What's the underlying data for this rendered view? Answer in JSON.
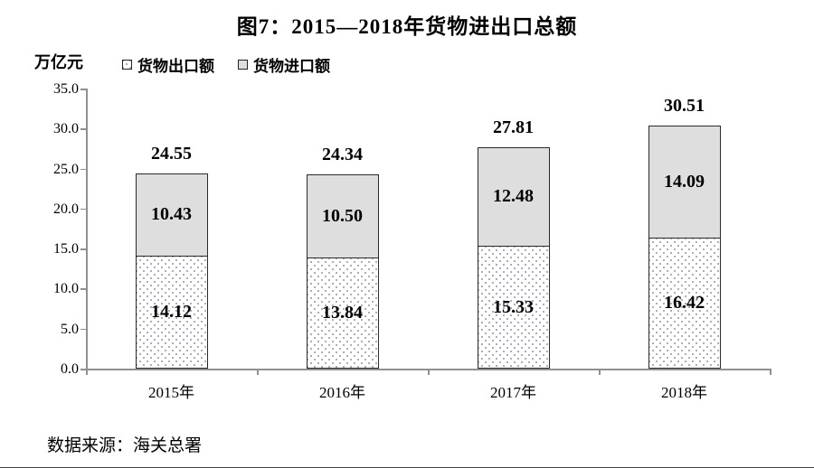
{
  "title": "图7：2015—2018年货物进出口总额",
  "unit_label": "万亿元",
  "legend": [
    {
      "label": "货物出口额",
      "swatch": "dotted-white"
    },
    {
      "label": "货物进口额",
      "swatch": "gray"
    }
  ],
  "source": "数据来源：海关总署",
  "colors": {
    "import_fill": "#dedede",
    "bar_border": "#2a2a2a",
    "axis": "#909090",
    "dot": "#9aa0b4"
  },
  "chart_data": {
    "type": "bar",
    "stacked": true,
    "title": "图7：2015—2018年货物进出口总额",
    "ylabel": "万亿元",
    "categories": [
      "2015年",
      "2016年",
      "2017年",
      "2018年"
    ],
    "series": [
      {
        "name": "货物出口额",
        "values": [
          14.12,
          13.84,
          15.33,
          16.42
        ],
        "labels": [
          "14.12",
          "13.84",
          "15.33",
          "16.42"
        ],
        "style": "dotted-white"
      },
      {
        "name": "货物进口额",
        "values": [
          10.43,
          10.5,
          12.48,
          14.09
        ],
        "labels": [
          "10.43",
          "10.50",
          "12.48",
          "14.09"
        ],
        "style": "gray"
      }
    ],
    "totals": [
      "24.55",
      "24.34",
      "27.81",
      "30.51"
    ],
    "ylim": [
      0,
      35
    ],
    "ytick_step": 5,
    "yticks": [
      "0.0",
      "5.0",
      "10.0",
      "15.0",
      "20.0",
      "25.0",
      "30.0",
      "35.0"
    ],
    "grid": false,
    "legend_position": "top-left"
  }
}
